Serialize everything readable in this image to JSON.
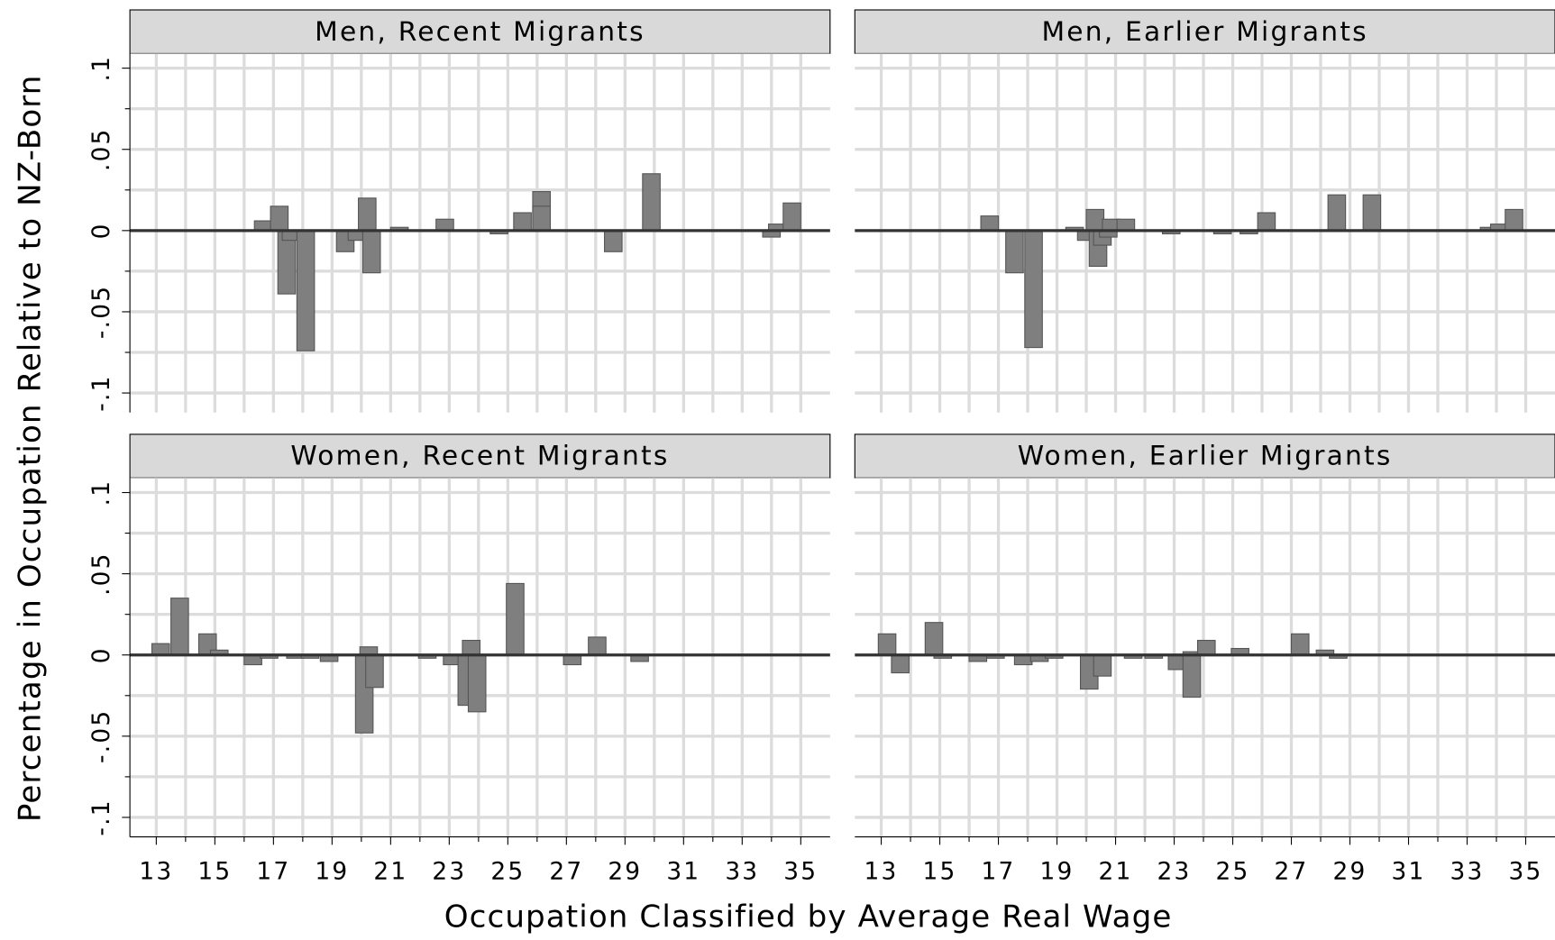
{
  "figure": {
    "ylabel": "Percentage in Occupation Relative to NZ-Born",
    "xlabel": "Occupation Classified by Average Real Wage"
  },
  "chart_data": [
    {
      "type": "bar",
      "title": "Men, Recent Migrants",
      "color": "#7f7f7f",
      "x": [
        16.65,
        17.2,
        17.45,
        17.6,
        18.1,
        19.45,
        19.85,
        20.2,
        20.35,
        21.3,
        22.85,
        24.7,
        25.5,
        26.15,
        26.15,
        28.6,
        29.9,
        34.0,
        34.2,
        34.7
      ],
      "values": [
        0.006,
        0.015,
        -0.039,
        -0.006,
        -0.074,
        -0.013,
        -0.006,
        0.02,
        -0.026,
        0.002,
        0.007,
        -0.002,
        0.011,
        0.024,
        0.015,
        -0.013,
        0.035,
        -0.004,
        0.004,
        0.017
      ],
      "xlim": [
        12.1,
        36
      ],
      "ylim": [
        -0.112,
        0.109
      ],
      "xticks": [
        13,
        15,
        17,
        19,
        21,
        23,
        25,
        27,
        29,
        31,
        33,
        35
      ],
      "xminor": [
        14,
        16,
        18,
        20,
        22,
        24,
        26,
        28,
        30,
        32,
        34
      ],
      "yticks": [
        {
          "value": 0.1,
          "label": ".1"
        },
        {
          "value": 0.05,
          "label": ".05"
        },
        0,
        {
          "value": -0.05,
          "label": "-.05"
        },
        {
          "value": -0.1,
          "label": "-.1"
        }
      ],
      "yminor": [
        0.075,
        0.025,
        -0.025,
        -0.075
      ],
      "grid": true
    },
    {
      "type": "bar",
      "title": "Men, Earlier Migrants",
      "color": "#7f7f7f",
      "x": [
        16.7,
        17.55,
        18.2,
        19.6,
        20.0,
        20.3,
        20.4,
        20.55,
        20.75,
        20.85,
        21.35,
        22.9,
        24.65,
        25.55,
        26.15,
        28.55,
        29.75,
        33.75,
        34.1,
        34.6
      ],
      "values": [
        0.009,
        -0.026,
        -0.072,
        0.002,
        -0.006,
        0.013,
        -0.022,
        -0.009,
        -0.004,
        0.007,
        0.007,
        -0.002,
        -0.002,
        -0.002,
        0.011,
        0.022,
        0.022,
        0.002,
        0.004,
        0.013
      ],
      "xlim": [
        12.1,
        36
      ],
      "ylim": [
        -0.112,
        0.109
      ],
      "xticks": [
        13,
        15,
        17,
        19,
        21,
        23,
        25,
        27,
        29,
        31,
        33,
        35
      ],
      "xminor": [
        14,
        16,
        18,
        20,
        22,
        24,
        26,
        28,
        30,
        32,
        34
      ],
      "yticks": [
        {
          "value": 0.1,
          "label": ".1"
        },
        {
          "value": 0.05,
          "label": ".05"
        },
        0,
        {
          "value": -0.05,
          "label": "-.05"
        },
        {
          "value": -0.1,
          "label": "-.1"
        }
      ],
      "yminor": [
        0.075,
        0.025,
        -0.025,
        -0.075
      ],
      "grid": true
    },
    {
      "type": "bar",
      "title": "Women, Recent Migrants",
      "color": "#7f7f7f",
      "x": [
        13.15,
        13.8,
        14.75,
        15.15,
        16.3,
        16.85,
        17.75,
        18.25,
        18.9,
        20.1,
        20.25,
        20.45,
        22.25,
        23.1,
        23.6,
        23.75,
        23.95,
        25.25,
        27.2,
        28.05,
        29.5
      ],
      "values": [
        0.007,
        0.035,
        0.013,
        0.003,
        -0.006,
        -0.002,
        -0.002,
        -0.002,
        -0.004,
        -0.048,
        0.005,
        -0.02,
        -0.002,
        -0.006,
        -0.031,
        0.009,
        -0.035,
        0.044,
        -0.006,
        0.011,
        -0.004
      ],
      "xlim": [
        12.1,
        36
      ],
      "ylim": [
        -0.112,
        0.109
      ],
      "xticks": [
        13,
        15,
        17,
        19,
        21,
        23,
        25,
        27,
        29,
        31,
        33,
        35
      ],
      "xminor": [
        14,
        16,
        18,
        20,
        22,
        24,
        26,
        28,
        30,
        32,
        34
      ],
      "yticks": [
        {
          "value": 0.1,
          "label": ".1"
        },
        {
          "value": 0.05,
          "label": ".05"
        },
        0,
        {
          "value": -0.05,
          "label": "-.05"
        },
        {
          "value": -0.1,
          "label": "-.1"
        }
      ],
      "yminor": [
        0.075,
        0.025,
        -0.025,
        -0.075
      ],
      "grid": true
    },
    {
      "type": "bar",
      "title": "Women, Earlier Migrants",
      "color": "#7f7f7f",
      "x": [
        13.2,
        13.65,
        14.8,
        15.1,
        16.3,
        16.9,
        17.85,
        18.4,
        18.9,
        20.1,
        20.55,
        21.6,
        22.3,
        23.1,
        23.6,
        23.6,
        24.1,
        25.25,
        27.3,
        28.15,
        28.6
      ],
      "values": [
        0.013,
        -0.011,
        0.02,
        -0.002,
        -0.004,
        -0.002,
        -0.006,
        -0.004,
        -0.002,
        -0.021,
        -0.013,
        -0.002,
        -0.002,
        -0.009,
        -0.026,
        0.002,
        0.009,
        0.004,
        0.013,
        0.003,
        -0.002
      ],
      "xlim": [
        12.1,
        36
      ],
      "ylim": [
        -0.112,
        0.109
      ],
      "xticks": [
        13,
        15,
        17,
        19,
        21,
        23,
        25,
        27,
        29,
        31,
        33,
        35
      ],
      "xminor": [
        14,
        16,
        18,
        20,
        22,
        24,
        26,
        28,
        30,
        32,
        34
      ],
      "yticks": [
        {
          "value": 0.1,
          "label": ".1"
        },
        {
          "value": 0.05,
          "label": ".05"
        },
        0,
        {
          "value": -0.05,
          "label": "-.05"
        },
        {
          "value": -0.1,
          "label": "-.1"
        }
      ],
      "yminor": [
        0.075,
        0.025,
        -0.025,
        -0.075
      ],
      "grid": true
    }
  ]
}
